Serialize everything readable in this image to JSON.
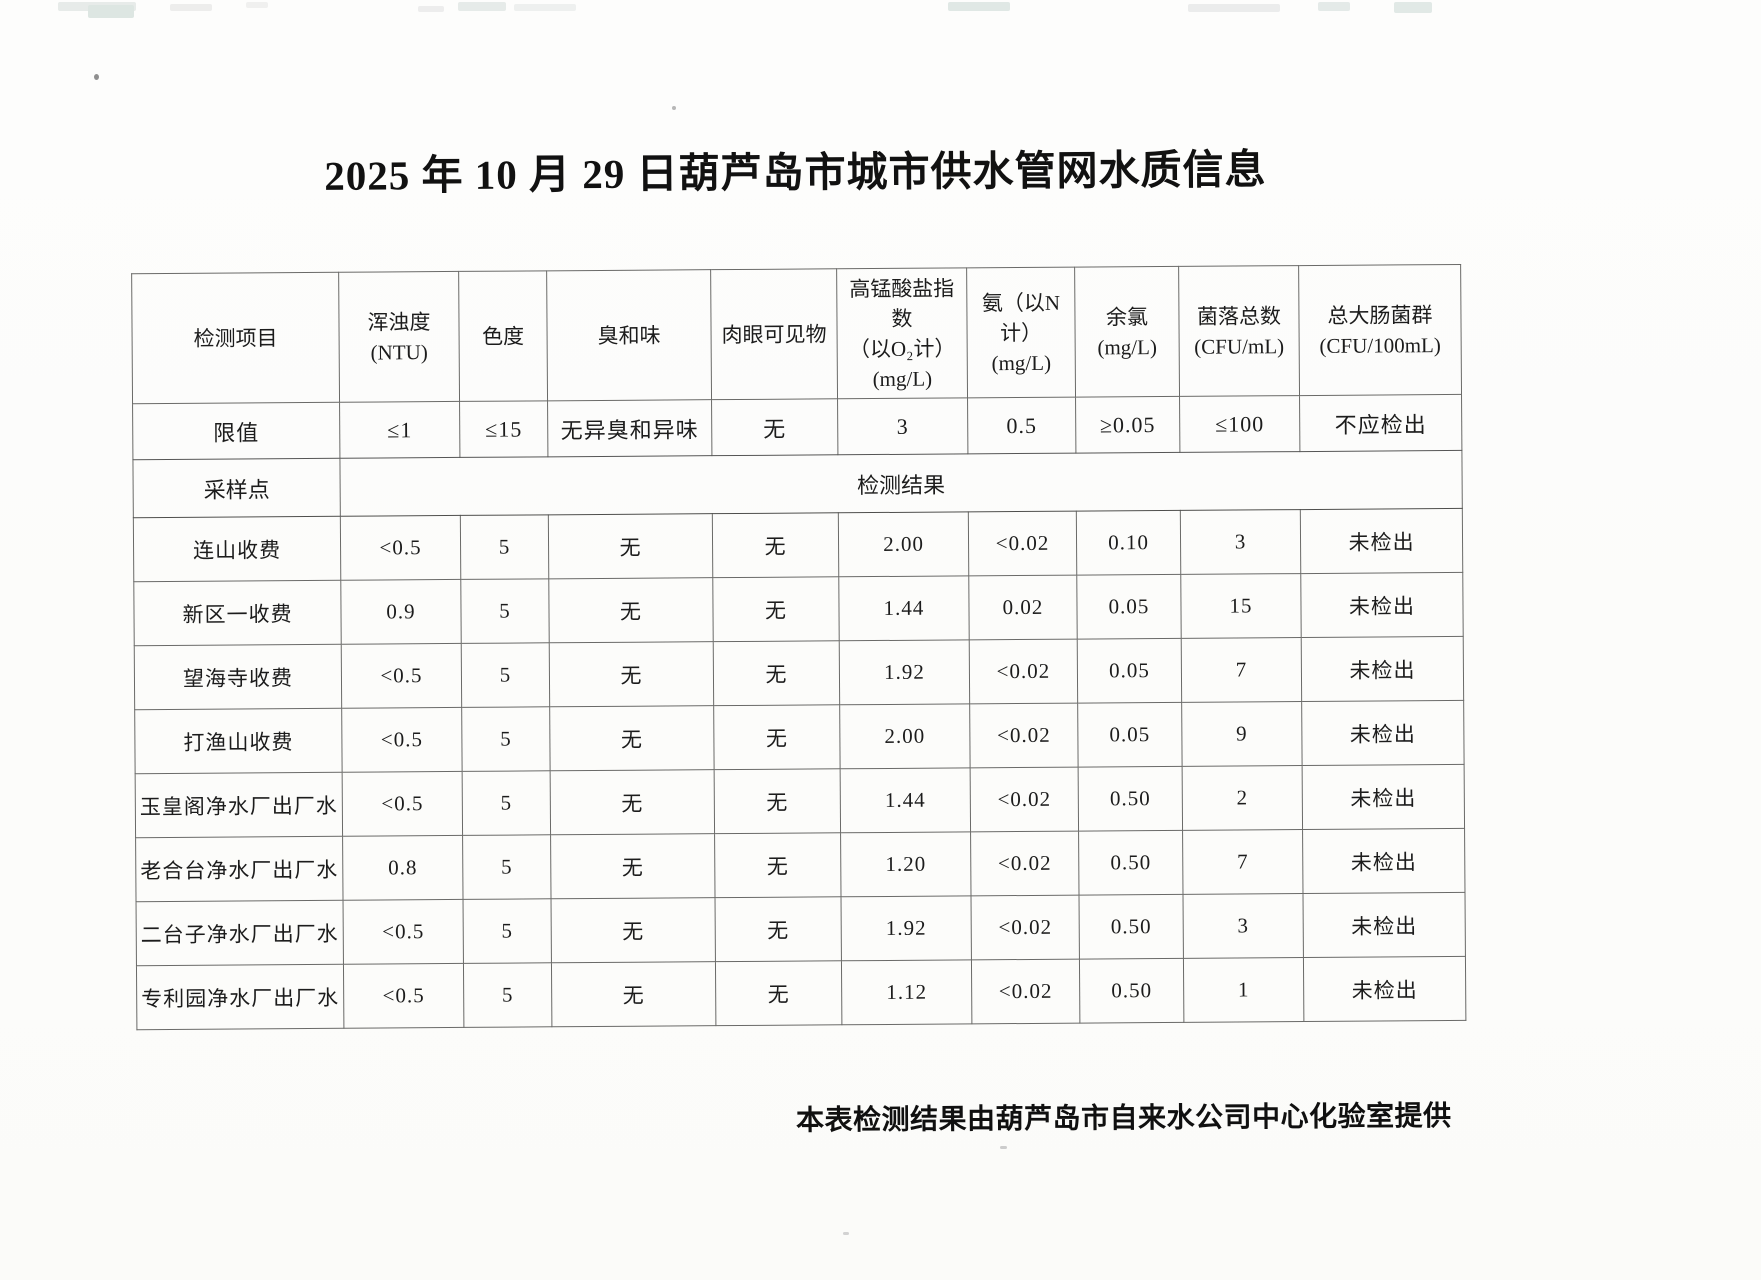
{
  "page": {
    "title": "2025 年 10 月 29 日葫芦岛市城市供水管网水质信息",
    "footer_note": "本表检测结果由葫芦岛市自来水公司中心化验室提供"
  },
  "table": {
    "header": {
      "item_label": "检测项目",
      "columns": [
        {
          "lines": [
            "浑浊度(NTU)"
          ]
        },
        {
          "lines": [
            "色度"
          ]
        },
        {
          "lines": [
            "臭和味"
          ]
        },
        {
          "lines": [
            "肉眼可见物"
          ]
        },
        {
          "lines": [
            "高锰酸盐指数",
            "（以O₂计）",
            "(mg/L)"
          ]
        },
        {
          "lines": [
            "氨（以N计）",
            "(mg/L)"
          ]
        },
        {
          "lines": [
            "余氯",
            "(mg/L)"
          ]
        },
        {
          "lines": [
            "菌落总数",
            "(CFU/mL)"
          ]
        },
        {
          "lines": [
            "总大肠菌群",
            "(CFU/100mL)"
          ]
        }
      ]
    },
    "limit_row": {
      "label": "限值",
      "values": [
        "≤1",
        "≤15",
        "无异臭和异味",
        "无",
        "3",
        "0.5",
        "≥0.05",
        "≤100",
        "不应检出"
      ]
    },
    "sampling_row": {
      "label": "采样点",
      "result_label": "检测结果"
    },
    "rows": [
      {
        "site": "连山收费",
        "values": [
          "<0.5",
          "5",
          "无",
          "无",
          "2.00",
          "<0.02",
          "0.10",
          "3",
          "未检出"
        ]
      },
      {
        "site": "新区一收费",
        "values": [
          "0.9",
          "5",
          "无",
          "无",
          "1.44",
          "0.02",
          "0.05",
          "15",
          "未检出"
        ]
      },
      {
        "site": "望海寺收费",
        "values": [
          "<0.5",
          "5",
          "无",
          "无",
          "1.92",
          "<0.02",
          "0.05",
          "7",
          "未检出"
        ]
      },
      {
        "site": "打渔山收费",
        "values": [
          "<0.5",
          "5",
          "无",
          "无",
          "2.00",
          "<0.02",
          "0.05",
          "9",
          "未检出"
        ]
      },
      {
        "site": "玉皇阁净水厂出厂水",
        "values": [
          "<0.5",
          "5",
          "无",
          "无",
          "1.44",
          "<0.02",
          "0.50",
          "2",
          "未检出"
        ]
      },
      {
        "site": "老合台净水厂出厂水",
        "values": [
          "0.8",
          "5",
          "无",
          "无",
          "1.20",
          "<0.02",
          "0.50",
          "7",
          "未检出"
        ]
      },
      {
        "site": "二台子净水厂出厂水",
        "values": [
          "<0.5",
          "5",
          "无",
          "无",
          "1.92",
          "<0.02",
          "0.50",
          "3",
          "未检出"
        ]
      },
      {
        "site": "专利园净水厂出厂水",
        "values": [
          "<0.5",
          "5",
          "无",
          "无",
          "1.12",
          "<0.02",
          "0.50",
          "1",
          "未检出"
        ]
      }
    ]
  }
}
